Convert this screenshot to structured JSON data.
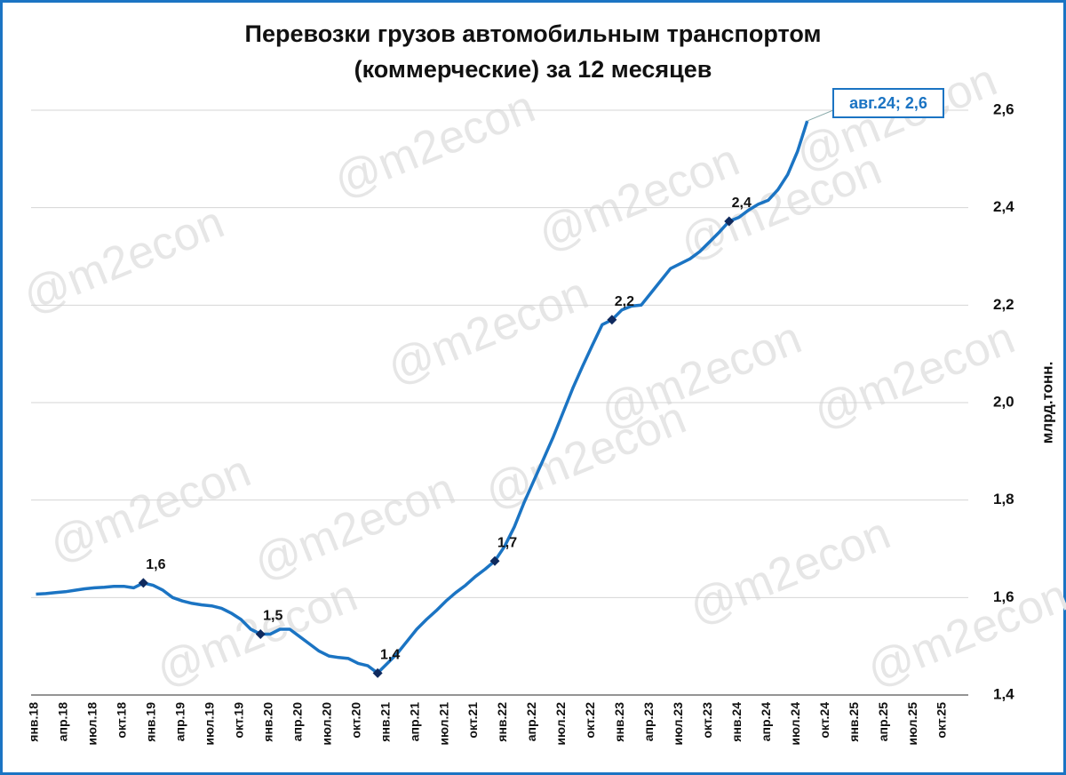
{
  "chart_data": {
    "type": "line",
    "title": "Перевозки грузов автомобильным транспортом",
    "subtitle": "(коммерческие) за 12 месяцев",
    "y_axis_label": "млрд.тонн.",
    "watermark": "@m2econ",
    "categories": [
      "янв.18",
      null,
      null,
      "апр.18",
      null,
      null,
      "июл.18",
      null,
      null,
      "окт.18",
      null,
      null,
      "янв.19",
      null,
      null,
      "апр.19",
      null,
      null,
      "июл.19",
      null,
      null,
      "окт.19",
      null,
      null,
      "янв.20",
      null,
      null,
      "апр.20",
      null,
      null,
      "июл.20",
      null,
      null,
      "окт.20",
      null,
      null,
      "янв.21",
      null,
      null,
      "апр.21",
      null,
      null,
      "июл.21",
      null,
      null,
      "окт.21",
      null,
      null,
      "янв.22",
      null,
      null,
      "апр.22",
      null,
      null,
      "июл.22",
      null,
      null,
      "окт.22",
      null,
      null,
      "янв.23",
      null,
      null,
      "апр.23",
      null,
      null,
      "июл.23",
      null,
      null,
      "окт.23",
      null,
      null,
      "янв.24",
      null,
      null,
      "апр.24",
      null,
      null,
      "июл.24",
      null,
      null,
      "окт.24",
      null,
      null,
      "янв.25",
      null,
      null,
      "апр.25",
      null,
      null,
      "июл.25",
      null,
      null,
      "окт.25",
      null,
      null
    ],
    "series": [
      {
        "name": "Перевозки грузов",
        "color": "#1b74c3",
        "values": [
          1.607,
          1.608,
          1.61,
          1.612,
          1.615,
          1.618,
          1.62,
          1.621,
          1.623,
          1.623,
          1.62,
          1.63,
          1.625,
          1.615,
          1.6,
          1.593,
          1.588,
          1.585,
          1.583,
          1.578,
          1.568,
          1.555,
          1.535,
          1.525,
          1.525,
          1.535,
          1.535,
          1.52,
          1.505,
          1.49,
          1.48,
          1.477,
          1.475,
          1.465,
          1.46,
          1.445,
          1.465,
          1.485,
          1.51,
          1.535,
          1.555,
          1.573,
          1.593,
          1.61,
          1.625,
          1.643,
          1.658,
          1.675,
          1.705,
          1.745,
          1.795,
          1.84,
          1.885,
          1.93,
          1.98,
          2.03,
          2.075,
          2.118,
          2.16,
          2.17,
          2.19,
          2.198,
          2.2,
          2.225,
          2.25,
          2.275,
          2.285,
          2.295,
          2.31,
          2.33,
          2.35,
          2.372,
          2.38,
          2.395,
          2.407,
          2.415,
          2.437,
          2.468,
          2.515,
          2.578,
          null,
          null,
          null,
          null,
          null,
          null,
          null,
          null,
          null,
          null,
          null,
          null,
          null,
          null,
          null,
          null
        ],
        "value_labels": [
          null,
          null,
          null,
          null,
          null,
          null,
          null,
          null,
          null,
          null,
          null,
          "1,6",
          null,
          null,
          null,
          null,
          null,
          null,
          null,
          null,
          null,
          null,
          null,
          "1,5",
          null,
          null,
          null,
          null,
          null,
          null,
          null,
          null,
          null,
          null,
          null,
          "1,4",
          null,
          null,
          null,
          null,
          null,
          null,
          null,
          null,
          null,
          null,
          null,
          "1,7",
          null,
          null,
          null,
          null,
          null,
          null,
          null,
          null,
          null,
          null,
          null,
          "2,2",
          null,
          null,
          null,
          null,
          null,
          null,
          null,
          null,
          null,
          null,
          null,
          "2,4",
          null,
          null,
          null,
          null,
          null,
          null,
          null,
          null,
          null,
          null,
          null,
          null,
          null,
          null,
          null,
          null,
          null,
          null,
          null,
          null,
          null,
          null,
          null,
          null
        ],
        "marker_color": "#0f2a5e"
      }
    ],
    "annotation": {
      "text": "авг.24;  2,6",
      "index": 79
    },
    "ylim": [
      1.4,
      2.6
    ],
    "yticks": [
      {
        "value": 1.4,
        "label": "1,4"
      },
      {
        "value": 1.6,
        "label": "1,6"
      },
      {
        "value": 1.8,
        "label": "1,8"
      },
      {
        "value": 2.0,
        "label": "2,0"
      },
      {
        "value": 2.2,
        "label": "2,2"
      },
      {
        "value": 2.4,
        "label": "2,4"
      },
      {
        "value": 2.6,
        "label": "2,6"
      }
    ],
    "grid": true
  }
}
